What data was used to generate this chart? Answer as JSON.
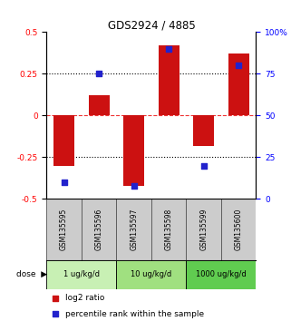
{
  "title": "GDS2924 / 4885",
  "samples": [
    "GSM135595",
    "GSM135596",
    "GSM135597",
    "GSM135598",
    "GSM135599",
    "GSM135600"
  ],
  "log2_ratio": [
    -0.3,
    0.12,
    -0.42,
    0.42,
    -0.18,
    0.37
  ],
  "percentile_rank": [
    10,
    75,
    8,
    90,
    20,
    80
  ],
  "dose_groups": [
    {
      "label": "1 ug/kg/d",
      "samples": [
        0,
        1
      ],
      "color": "#c8f0b4"
    },
    {
      "label": "10 ug/kg/d",
      "samples": [
        2,
        3
      ],
      "color": "#a0e080"
    },
    {
      "label": "1000 ug/kg/d",
      "samples": [
        4,
        5
      ],
      "color": "#60cc50"
    }
  ],
  "bar_color": "#cc1111",
  "square_color": "#2222cc",
  "left_ylim": [
    -0.5,
    0.5
  ],
  "right_ylim": [
    0,
    100
  ],
  "left_yticks": [
    -0.5,
    -0.25,
    0,
    0.25,
    0.5
  ],
  "right_yticks": [
    0,
    25,
    50,
    75,
    100
  ],
  "left_yticklabels": [
    "-0.5",
    "-0.25",
    "0",
    "0.25",
    "0.5"
  ],
  "right_yticklabels": [
    "0",
    "25",
    "50",
    "75",
    "100%"
  ],
  "hlines": [
    -0.25,
    0.25
  ],
  "dashed_zero_color": "#ee3333",
  "sample_bg_color": "#cccccc",
  "sample_border_color": "#555555",
  "bar_width": 0.6
}
